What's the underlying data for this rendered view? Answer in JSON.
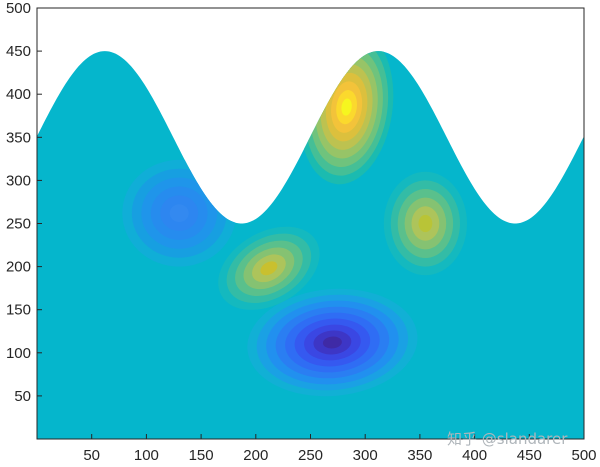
{
  "chart_data": {
    "type": "heatmap",
    "title": "",
    "xlabel": "",
    "ylabel": "",
    "xlim": [
      0,
      500
    ],
    "ylim": [
      0,
      500
    ],
    "x_ticks": [
      50,
      100,
      150,
      200,
      250,
      300,
      350,
      400,
      450,
      500
    ],
    "y_ticks": [
      50,
      100,
      150,
      200,
      250,
      300,
      350,
      400,
      450,
      500
    ],
    "grid": false,
    "legend": "none",
    "colormap": "parula",
    "background_level_color": "#05b6cc",
    "upper_boundary": {
      "description": "filled region bounded above by a sinusoid",
      "points": [
        [
          0,
          340
        ],
        [
          62,
          450
        ],
        [
          188,
          250
        ],
        [
          312,
          450
        ],
        [
          438,
          250
        ],
        [
          500,
          340
        ]
      ]
    },
    "features": [
      {
        "kind": "low",
        "x": 270,
        "y": 112,
        "level": "minimum",
        "color": "#3f2aa6"
      },
      {
        "kind": "low",
        "x": 130,
        "y": 262,
        "level": "low",
        "color": "#3389f0"
      },
      {
        "kind": "high",
        "x": 283,
        "y": 385,
        "level": "maximum",
        "color": "#f6f61f"
      },
      {
        "kind": "high",
        "x": 212,
        "y": 198,
        "level": "high",
        "color": "#c9c02f"
      },
      {
        "kind": "high",
        "x": 355,
        "y": 250,
        "level": "high",
        "color": "#b9c437"
      }
    ]
  },
  "watermark": "知乎 @slandarer"
}
